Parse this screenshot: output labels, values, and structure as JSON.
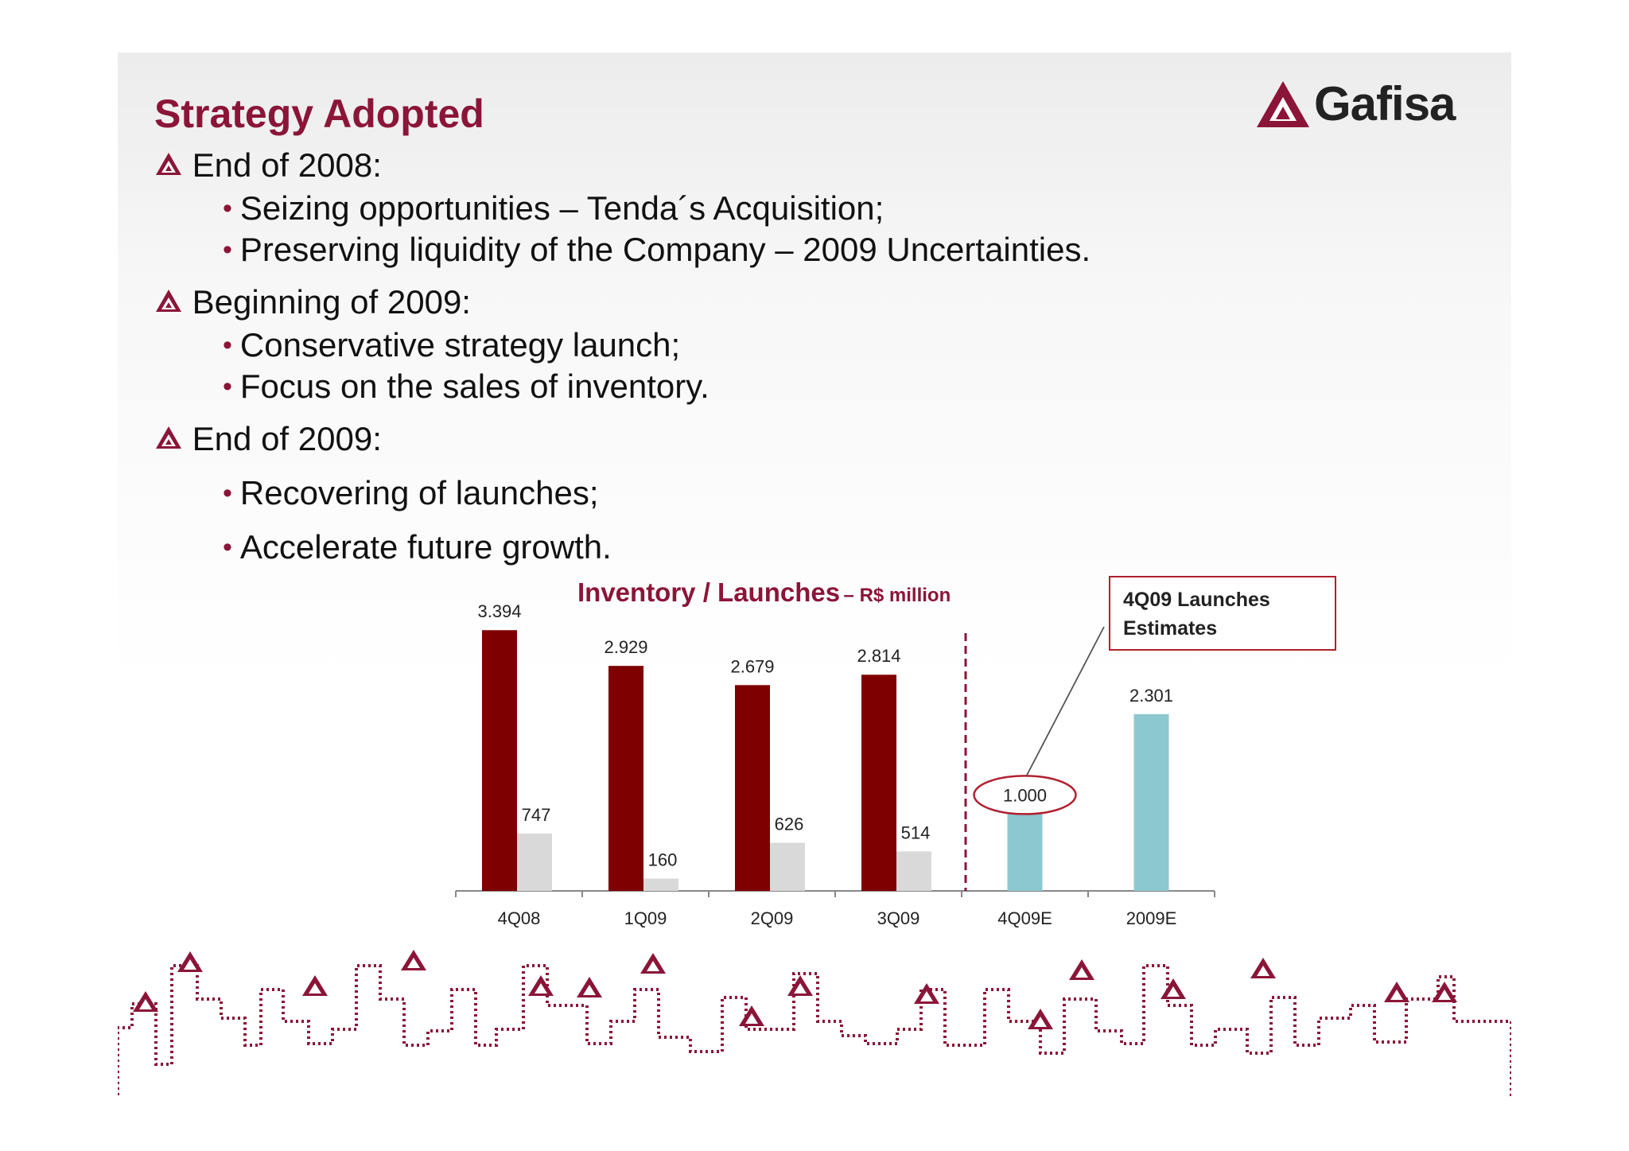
{
  "slide": {
    "title": "Strategy Adopted",
    "logo_text": "Gafisa",
    "sections": [
      {
        "heading": "End of 2008:",
        "bullets": [
          "Seizing opportunities – Tenda´s Acquisition;",
          "Preserving liquidity of the Company – 2009 Uncertainties."
        ]
      },
      {
        "heading": "Beginning of 2009:",
        "bullets": [
          "Conservative strategy launch;",
          "Focus on the sales of inventory."
        ]
      },
      {
        "heading": "End of 2009:",
        "bullets": [
          "Recovering of launches;",
          "Accelerate future growth."
        ]
      }
    ],
    "callout": {
      "line1": "4Q09 Launches",
      "line2": "Estimates"
    }
  },
  "colors": {
    "brand": "#8b1538",
    "inventory": "#7f0000",
    "launches": "#d9d9d9",
    "estimates": "#8cc8d0",
    "callout_border": "#b0202f"
  },
  "chart_data": {
    "type": "bar",
    "title": "Inventory / Launches",
    "unit_label": "– R$ million",
    "categories": [
      "4Q08",
      "1Q09",
      "2Q09",
      "3Q09",
      "4Q09E",
      "2009E"
    ],
    "series": [
      {
        "name": "Inventory",
        "values": [
          3394,
          2929,
          2679,
          2814,
          null,
          null
        ],
        "labels": [
          "3.394",
          "2.929",
          "2.679",
          "2.814",
          "",
          ""
        ]
      },
      {
        "name": "Launches",
        "values": [
          747,
          160,
          626,
          514,
          null,
          null
        ],
        "labels": [
          "747",
          "160",
          "626",
          "514",
          "",
          ""
        ]
      },
      {
        "name": "",
        "values": [
          null,
          null,
          null,
          null,
          1000,
          2301
        ],
        "labels": [
          "",
          "",
          "",
          "",
          "1.000",
          "2.301"
        ]
      }
    ],
    "ylim": [
      0,
      3500
    ],
    "grid": false,
    "legend": "bottom",
    "annotations": [
      "4Q09 Launches Estimates"
    ]
  }
}
